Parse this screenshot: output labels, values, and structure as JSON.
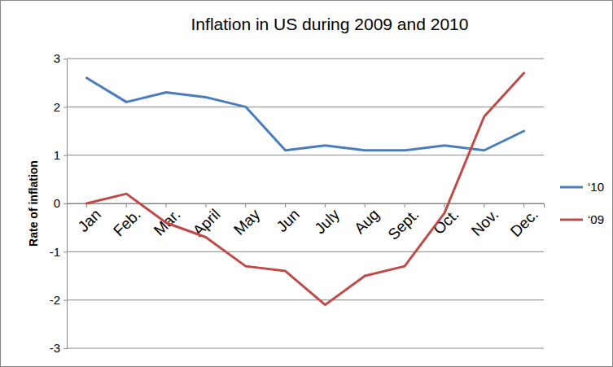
{
  "chart_data": {
    "type": "line",
    "title": "Inflation in US during 2009 and 2010",
    "y_label": "Rate of inflation",
    "categories": [
      "Jan",
      "Feb.",
      "Mar.",
      "April",
      "May",
      "Jun",
      "July",
      "Aug",
      "Sept.",
      "Oct.",
      "Nov.",
      "Dec."
    ],
    "series": [
      {
        "name": "‘10",
        "color": "#4a7ebb",
        "values": [
          2.6,
          2.1,
          2.3,
          2.2,
          2.0,
          1.1,
          1.2,
          1.1,
          1.1,
          1.2,
          1.1,
          1.5
        ]
      },
      {
        "name": "‘09",
        "color": "#be4b48",
        "values": [
          0.0,
          0.2,
          -0.4,
          -0.7,
          -1.3,
          -1.4,
          -2.1,
          -1.5,
          -1.3,
          -0.2,
          1.8,
          2.7
        ]
      }
    ],
    "ylim": [
      -3,
      3
    ],
    "yticks": [
      -3,
      -2,
      -1,
      0,
      1,
      2,
      3
    ],
    "grid": true,
    "legend": "right"
  }
}
